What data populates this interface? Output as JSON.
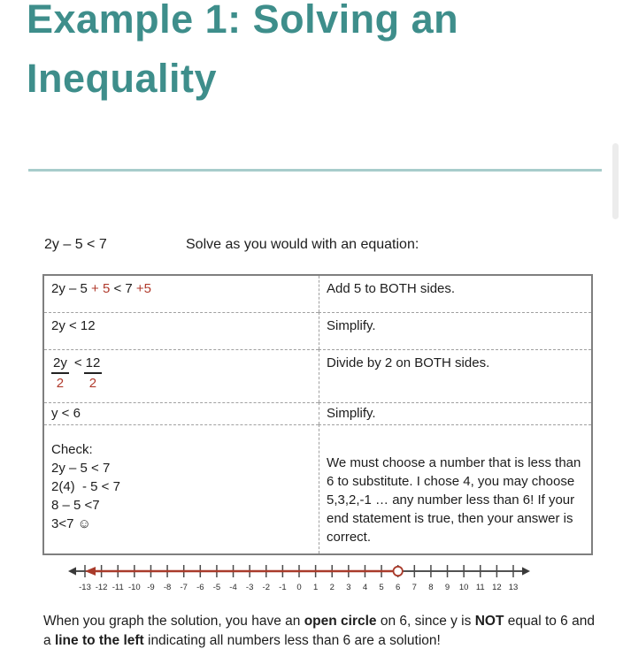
{
  "title": {
    "line1": "Example 1: Solving an",
    "line2": "Inequality"
  },
  "colors": {
    "title_teal": "#3E8E8B",
    "divider_teal": "#A7CCCB",
    "accent_red": "#B03A2C",
    "number_line_red": "#A93B2B",
    "table_border_gray": "#7f7f7f",
    "text": "#1d1d1d"
  },
  "intro": {
    "equation": "2y – 5 < 7",
    "instruction": "Solve as you would with an equation:"
  },
  "table": {
    "rows": [
      {
        "left_parts": [
          {
            "text": "2y – 5 "
          },
          {
            "text": "+ 5",
            "red": true
          },
          {
            "text": " < 7 ",
            "red": false
          },
          {
            "text": "+5",
            "red": true
          }
        ],
        "right": "Add 5 to BOTH sides."
      },
      {
        "left": "2y < 12",
        "right": "Simplify."
      },
      {
        "fraction": {
          "num1": "2y",
          "den1": "2",
          "op": "<",
          "num2": "12",
          "den2": "2"
        },
        "right": "Divide by 2 on BOTH sides."
      },
      {
        "left": "y < 6",
        "right": "Simplify."
      },
      {
        "check_lines": [
          "Check:",
          "2y – 5 < 7",
          "2(4)  - 5 < 7",
          "8 – 5 <7",
          "3<7 ☺"
        ],
        "right": "We must choose a number that is less than 6 to substitute.  I chose 4, you may choose 5,3,2,-1 … any number less than 6!  If your end statement is true, then your answer is correct."
      }
    ]
  },
  "number_line": {
    "min": -13,
    "max": 13,
    "open_circle_at": 6,
    "ray_direction": "left",
    "labels": [
      "-13",
      "-12",
      "-11",
      "-10",
      "-9",
      "-8",
      "-7",
      "-6",
      "-5",
      "-4",
      "-3",
      "-2",
      "-1",
      "0",
      "1",
      "2",
      "3",
      "4",
      "5",
      "6",
      "7",
      "8",
      "9",
      "10",
      "11",
      "12",
      "13"
    ]
  },
  "footer": {
    "parts": [
      {
        "text": "When you graph the solution, you have an "
      },
      {
        "text": "open circle",
        "bold": true
      },
      {
        "text": " on 6, since y is "
      },
      {
        "text": "NOT",
        "bold": true
      },
      {
        "text": " equal to 6 and a "
      },
      {
        "text": "line to the left",
        "bold": true
      },
      {
        "text": " indicating all numbers less than 6 are a solution!"
      }
    ]
  }
}
